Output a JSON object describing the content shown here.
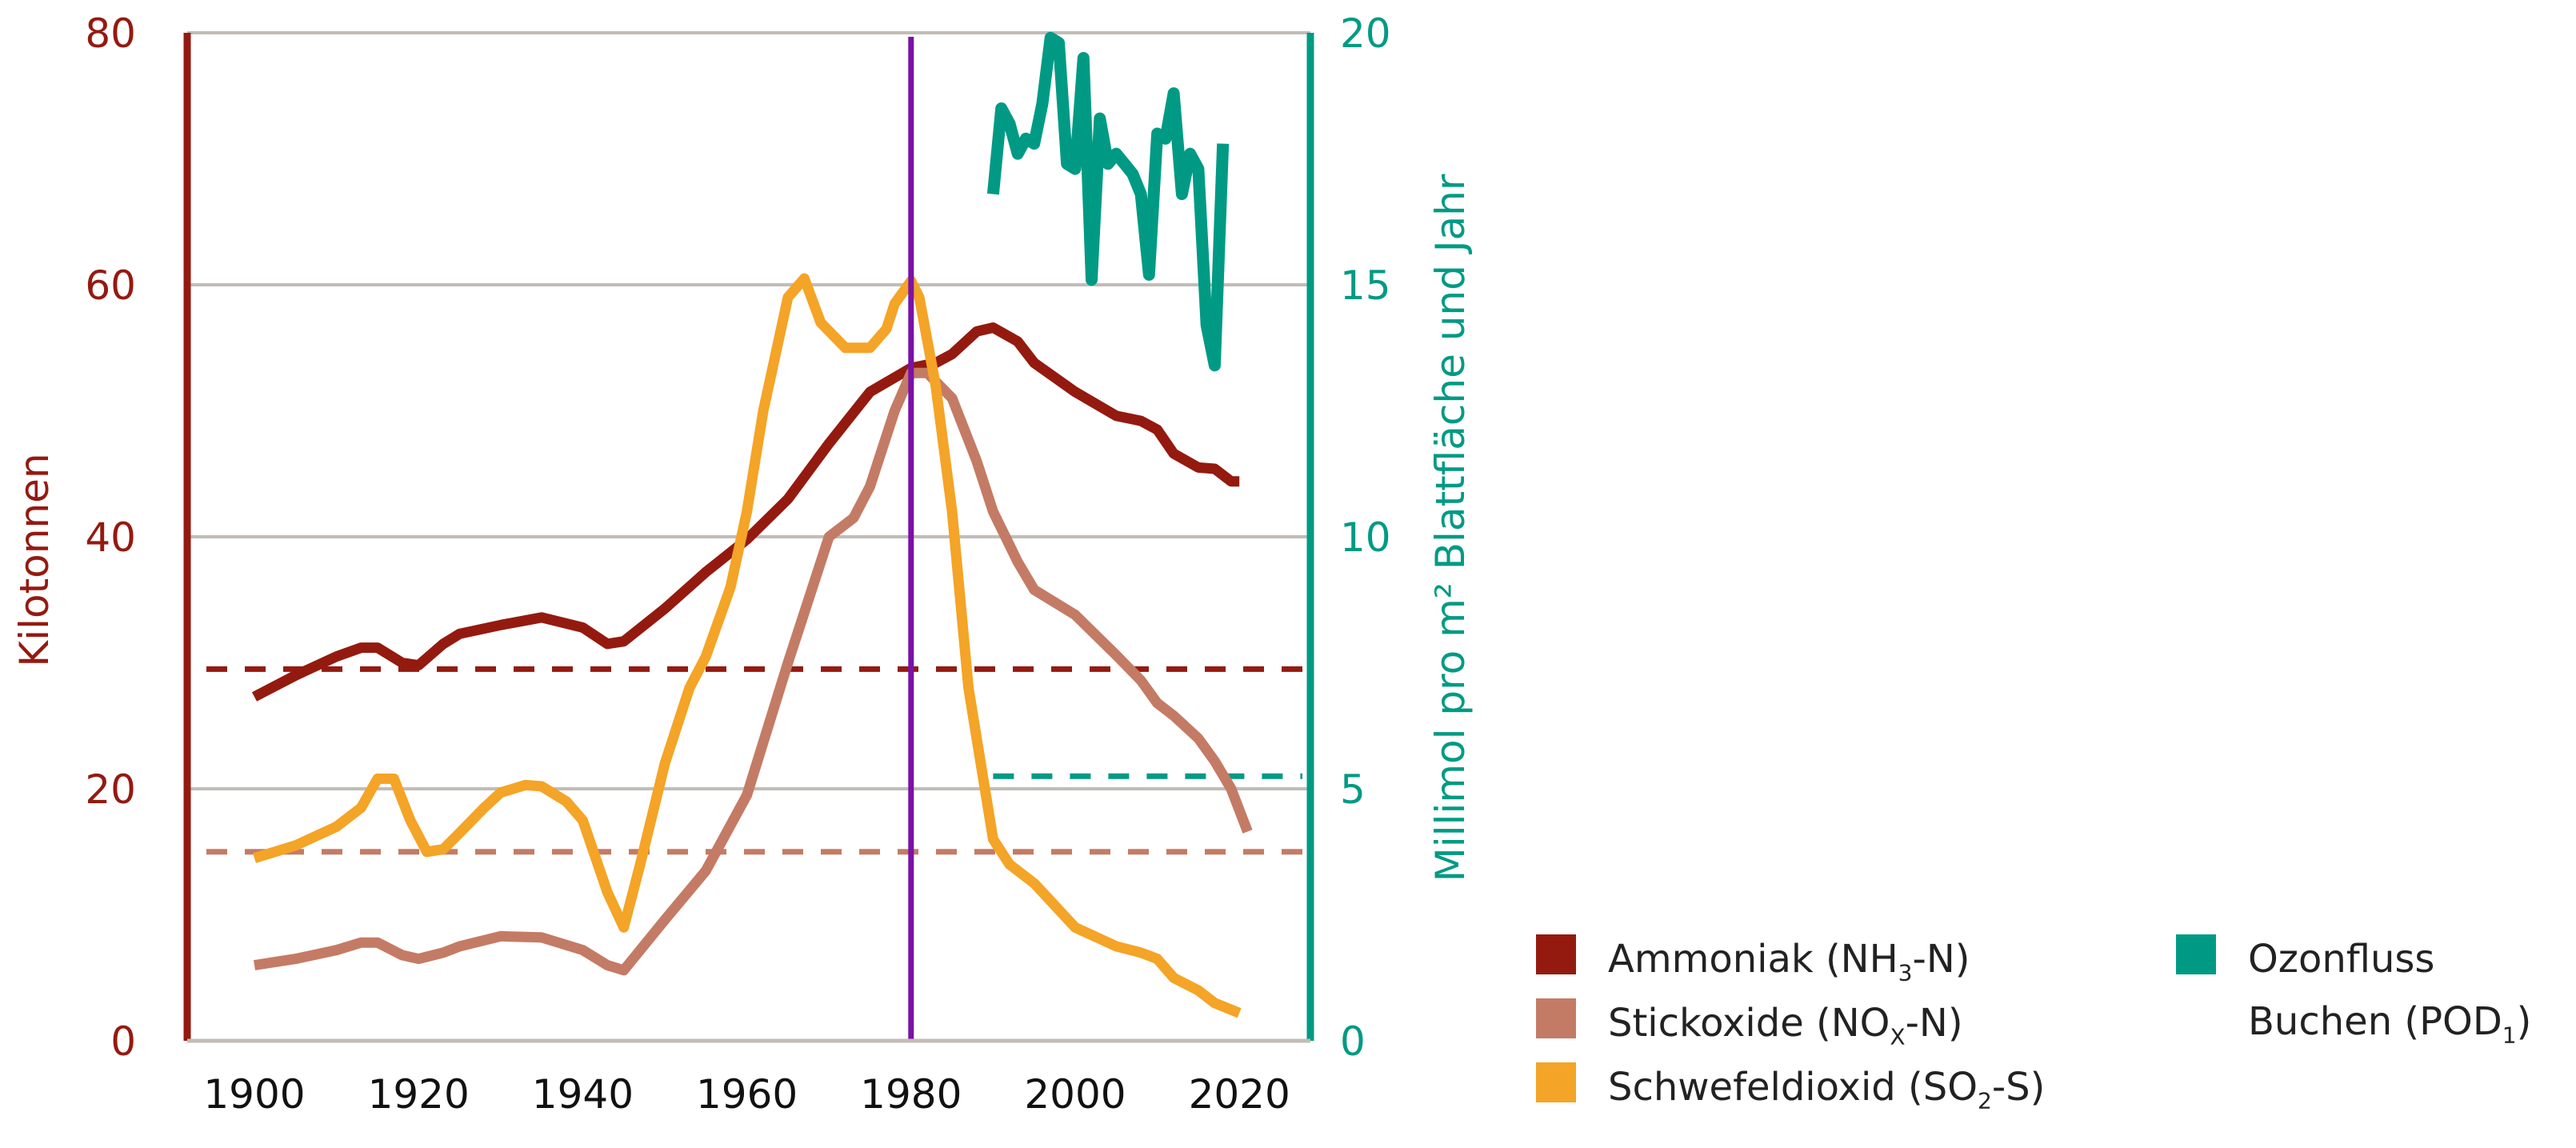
{
  "chart_data": {
    "type": "line",
    "title": "",
    "xlabel": "",
    "ylabel": "Kilotonnen",
    "ylabel_right": "Millimol pro m² Blattfläche und Jahr",
    "xlim": [
      1890,
      2027
    ],
    "ylim": [
      0,
      80
    ],
    "ylim_right": [
      0,
      20
    ],
    "x_ticks": [
      "1900",
      "1920",
      "1940",
      "1960",
      "1980",
      "2000",
      "2020"
    ],
    "y_ticks": [
      "0",
      "20",
      "40",
      "60",
      "80"
    ],
    "y_ticks_right": [
      "0",
      "5",
      "10",
      "15",
      "20"
    ],
    "grid": true,
    "vertical_marker": {
      "x": 1980,
      "color": "#7a12a6"
    },
    "colors": {
      "ammoniak": "#941a10",
      "stickoxide": "#c47b65",
      "schwefel": "#f4a427",
      "ozon": "#009a84",
      "left_axis": "#941a10",
      "right_axis": "#009a84",
      "grid": "#c2bcb7"
    },
    "series": [
      {
        "key": "ammoniak",
        "name": "Ammoniak (NH3-N)",
        "axis": "left",
        "color": "#941a10",
        "x": [
          1900,
          1905,
          1910,
          1913,
          1915,
          1918,
          1920,
          1923,
          1925,
          1930,
          1935,
          1940,
          1943,
          1945,
          1950,
          1955,
          1960,
          1965,
          1970,
          1975,
          1980,
          1983,
          1985,
          1988,
          1990,
          1993,
          1995,
          2000,
          2005,
          2008,
          2010,
          2012,
          2015,
          2017,
          2019,
          2020
        ],
        "y": [
          27.3,
          29,
          30.5,
          31.2,
          31.2,
          30,
          29.8,
          31.5,
          32.3,
          33,
          33.6,
          32.8,
          31.5,
          31.7,
          34.3,
          37.2,
          39.8,
          43,
          47.4,
          51.5,
          53.4,
          53.8,
          54.5,
          56.3,
          56.6,
          55.5,
          53.8,
          51.5,
          49.6,
          49.2,
          48.5,
          46.6,
          45.5,
          45.4,
          44.4,
          44.4
        ]
      },
      {
        "key": "stickoxide",
        "name": "Stickoxide (NOX-N)",
        "axis": "left",
        "color": "#c47b65",
        "x": [
          1900,
          1905,
          1910,
          1913,
          1915,
          1918,
          1920,
          1923,
          1925,
          1930,
          1935,
          1940,
          1943,
          1945,
          1950,
          1955,
          1960,
          1965,
          1968,
          1970,
          1973,
          1975,
          1978,
          1980,
          1982,
          1985,
          1988,
          1990,
          1993,
          1995,
          2000,
          2005,
          2008,
          2010,
          2012,
          2015,
          2017,
          2019,
          2021
        ],
        "y": [
          6,
          6.5,
          7.2,
          7.8,
          7.8,
          6.8,
          6.5,
          7,
          7.5,
          8.3,
          8.2,
          7.2,
          6,
          5.6,
          9.6,
          13.5,
          19.5,
          30,
          36,
          40,
          41.5,
          44,
          50,
          53,
          53,
          51,
          46,
          42,
          38,
          35.8,
          33.8,
          30.6,
          28.6,
          26.8,
          25.8,
          24,
          22.2,
          20,
          16.6
        ]
      },
      {
        "key": "schwefel",
        "name": "Schwefeldioxid (SO2-S)",
        "axis": "left",
        "color": "#f4a427",
        "x": [
          1900,
          1905,
          1910,
          1913,
          1915,
          1917,
          1919,
          1921,
          1923,
          1925,
          1928,
          1930,
          1933,
          1935,
          1938,
          1940,
          1943,
          1945,
          1947,
          1950,
          1953,
          1955,
          1958,
          1960,
          1962,
          1965,
          1967,
          1969,
          1972,
          1975,
          1977,
          1978,
          1980,
          1981,
          1983,
          1985,
          1987,
          1989,
          1990,
          1992,
          1995,
          2000,
          2005,
          2008,
          2010,
          2012,
          2015,
          2017,
          2020
        ],
        "y": [
          14.5,
          15.5,
          17,
          18.5,
          20.8,
          20.8,
          17.5,
          15,
          15.2,
          16.5,
          18.5,
          19.7,
          20.3,
          20.2,
          19,
          17.5,
          11.8,
          9,
          14,
          22,
          28,
          30.5,
          36,
          42,
          50,
          59,
          60.5,
          57,
          55,
          55,
          56.5,
          58.5,
          60.3,
          59,
          52,
          42,
          28,
          20,
          16,
          14,
          12.5,
          9,
          7.5,
          7,
          6.5,
          5,
          4,
          3,
          2.2
        ]
      },
      {
        "key": "ozon",
        "name": "Ozonfluss Buchen (POD1)",
        "axis": "right",
        "color": "#009a84",
        "x": [
          1990,
          1991,
          1992,
          1993,
          1994,
          1995,
          1996,
          1997,
          1998,
          1999,
          2000,
          2001,
          2002,
          2003,
          2004,
          2005,
          2006,
          2007,
          2008,
          2009,
          2010,
          2011,
          2012,
          2013,
          2014,
          2015,
          2016,
          2017,
          2018
        ],
        "y": [
          16.8,
          18.5,
          18.2,
          17.6,
          17.9,
          17.8,
          18.6,
          19.9,
          19.8,
          17.4,
          17.3,
          19.5,
          15.1,
          18.3,
          17.4,
          17.6,
          17.4,
          17.2,
          16.8,
          15.2,
          18,
          17.9,
          18.8,
          16.8,
          17.6,
          17.3,
          14.2,
          13.4,
          17.8
        ]
      }
    ],
    "reference_lines": [
      {
        "series": "ammoniak",
        "axis": "left",
        "y": 29.5,
        "x_from": 1900,
        "x_to": 2027,
        "style": "dashed"
      },
      {
        "series": "stickoxide",
        "axis": "left",
        "y": 15,
        "x_from": 1900,
        "x_to": 2027,
        "style": "dashed"
      },
      {
        "series": "ozon",
        "axis": "right",
        "y": 5.25,
        "x_from": 1990,
        "x_to": 2027,
        "style": "dashed"
      }
    ],
    "legend_position": "bottom-right"
  },
  "legend": {
    "items": [
      {
        "label": "Ammoniak (NH",
        "sub": "3",
        "suffix": "-N)",
        "color": "#941a10"
      },
      {
        "label": "Stickoxide (NO",
        "sub": "X",
        "suffix": "-N)",
        "color": "#c47b65"
      },
      {
        "label": "Schwefeldioxid (SO",
        "sub": "2",
        "suffix": "-S)",
        "color": "#f4a427"
      },
      {
        "label": "Ozonfluss",
        "label2": "Buchen (POD",
        "sub": "1",
        "suffix": ")",
        "color": "#009a84"
      }
    ]
  }
}
